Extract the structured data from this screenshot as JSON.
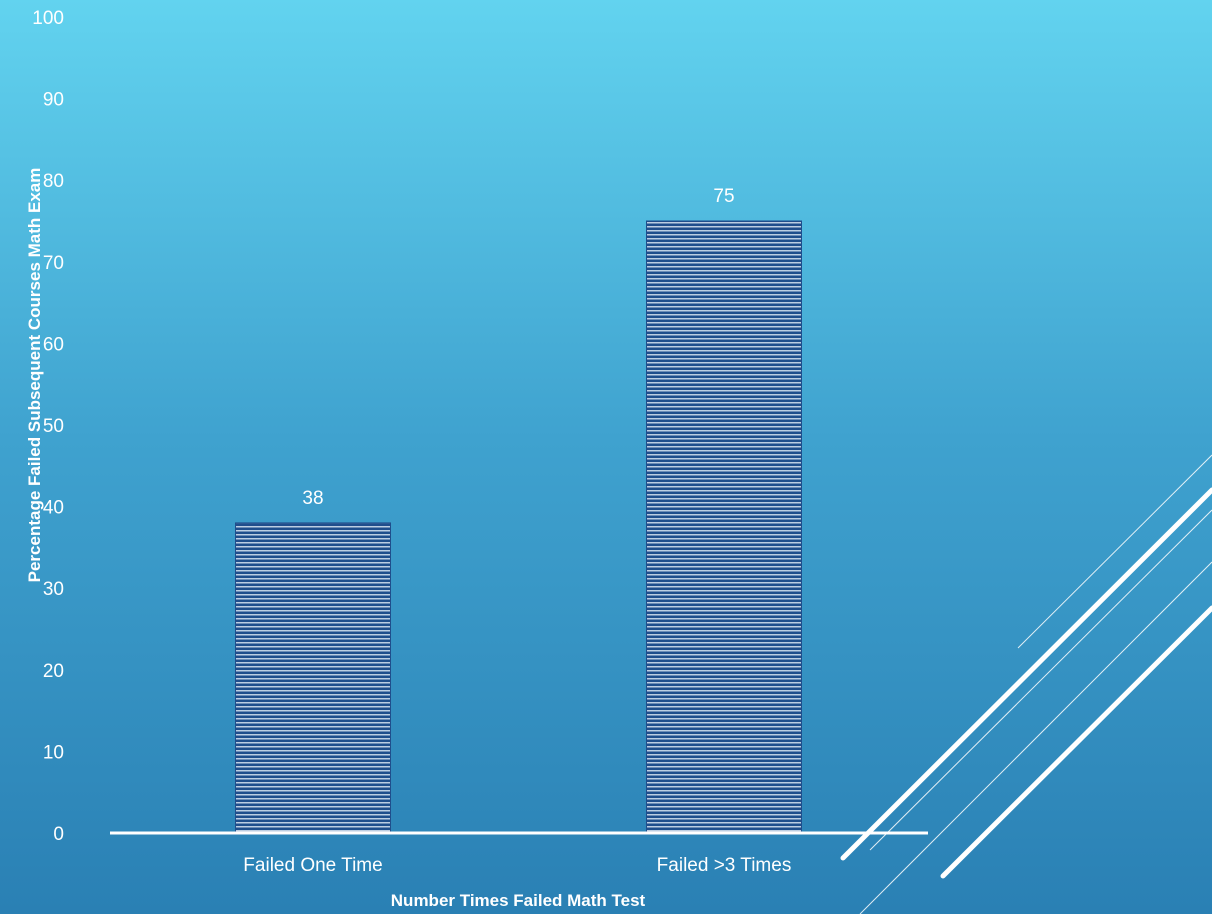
{
  "chart_data": {
    "type": "bar",
    "title": "",
    "xlabel": "Number Times Failed Math Test",
    "ylabel": "Percentage Failed Subsequent Courses Math Exam",
    "categories": [
      "Failed One Time",
      "Failed >3 Times"
    ],
    "values": [
      38,
      75
    ],
    "data_labels": [
      "38",
      "75"
    ],
    "ylim": [
      0,
      100
    ],
    "yticks": [
      "0",
      "10",
      "20",
      "30",
      "40",
      "50",
      "60",
      "70",
      "80",
      "90",
      "100"
    ],
    "grid": false,
    "legend": "none"
  },
  "colors": {
    "bar_fill": "#1f4e8c",
    "bar_stripe": "#e3eef8",
    "text": "#ffffff",
    "axis": "#ffffff",
    "background_top": "#62d3ef",
    "background_bottom": "#2a80b4"
  }
}
